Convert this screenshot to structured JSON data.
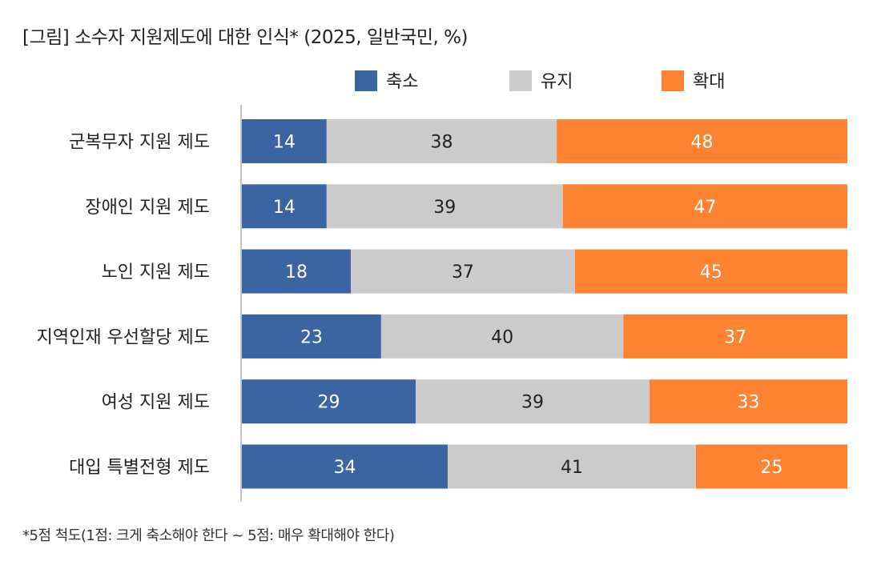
{
  "title": "[그림] 소수자 지원제도에 대한 인식* (2025, 일반국민, %)",
  "footnote": "*5점 척도(1점: 크게 축소해야 한다 ~ 5점: 매우 확대해야 한다)",
  "colors": {
    "shrink": "#3a64a2",
    "maintain": "#cbcbcb",
    "expand": "#fd8232",
    "axis": "#888888"
  },
  "chart_data": {
    "type": "bar",
    "orientation": "horizontal",
    "stacked": true,
    "title": "[그림] 소수자 지원제도에 대한 인식* (2025, 일반국민, %)",
    "categories": [
      "군복무자 지원 제도",
      "장애인 지원 제도",
      "노인 지원 제도",
      "지역인재 우선할당 제도",
      "여성 지원 제도",
      "대입 특별전형 제도"
    ],
    "series": [
      {
        "name": "축소",
        "color": "#3a64a2",
        "values": [
          14,
          14,
          18,
          23,
          29,
          34
        ]
      },
      {
        "name": "유지",
        "color": "#cbcbcb",
        "values": [
          38,
          39,
          37,
          40,
          39,
          41
        ]
      },
      {
        "name": "확대",
        "color": "#fd8232",
        "values": [
          48,
          47,
          45,
          37,
          33,
          25
        ]
      }
    ],
    "xlim": [
      0,
      100
    ],
    "legend": "top",
    "grid": false,
    "data_labels": true
  }
}
